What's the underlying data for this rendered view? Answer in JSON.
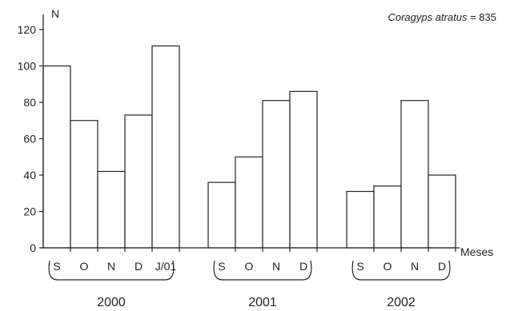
{
  "chart_data": {
    "type": "bar",
    "ylabel": "N",
    "xlabel": "Meses",
    "annotation": {
      "species": "Coragyps atratus",
      "suffix": " = 835"
    },
    "ylim": [
      0,
      120
    ],
    "yticks": [
      0,
      20,
      40,
      60,
      80,
      100,
      120
    ],
    "grid": false,
    "groups": [
      {
        "year": "2000",
        "categories": [
          "S",
          "O",
          "N",
          "D",
          "J/01"
        ],
        "values": [
          100,
          70,
          42,
          73,
          111
        ]
      },
      {
        "year": "2001",
        "categories": [
          "S",
          "O",
          "N",
          "D"
        ],
        "values": [
          36,
          50,
          81,
          86
        ]
      },
      {
        "year": "2002",
        "categories": [
          "S",
          "O",
          "N",
          "D"
        ],
        "values": [
          31,
          34,
          81,
          40
        ]
      }
    ],
    "colors": {
      "bar_fill": "#ffffff",
      "bar_stroke": "#222222",
      "axis": "#222222"
    }
  }
}
